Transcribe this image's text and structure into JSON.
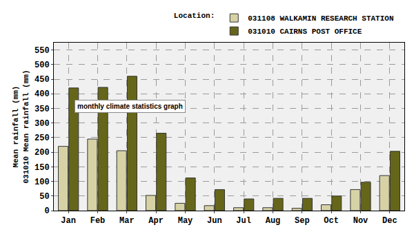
{
  "chart_data": {
    "type": "bar",
    "legend_title": "Location:",
    "ylabel": [
      "Mean rainfall (mm)",
      "031010 Mean rainfall (mm)"
    ],
    "categories": [
      "Jan",
      "Feb",
      "Mar",
      "Apr",
      "May",
      "Jun",
      "Jul",
      "Aug",
      "Sep",
      "Oct",
      "Nov",
      "Dec"
    ],
    "series": [
      {
        "name": "031108 WALKAMIN RESEARCH STATION",
        "color": "#d6d2a6",
        "values": [
          220,
          245,
          205,
          52,
          25,
          17,
          10,
          10,
          8,
          20,
          72,
          120
        ]
      },
      {
        "name": "031010 CAIRNS POST OFFICE",
        "color": "#66661a",
        "values": [
          420,
          422,
          460,
          265,
          112,
          72,
          40,
          42,
          42,
          50,
          97,
          203
        ]
      }
    ],
    "ylim": [
      0,
      575
    ],
    "yticks": [
      0,
      50,
      100,
      150,
      200,
      250,
      300,
      350,
      400,
      450,
      500,
      550
    ],
    "grid": true,
    "legend": "top right",
    "annotations": [
      {
        "text": "monthly climate statistics graph"
      }
    ]
  }
}
